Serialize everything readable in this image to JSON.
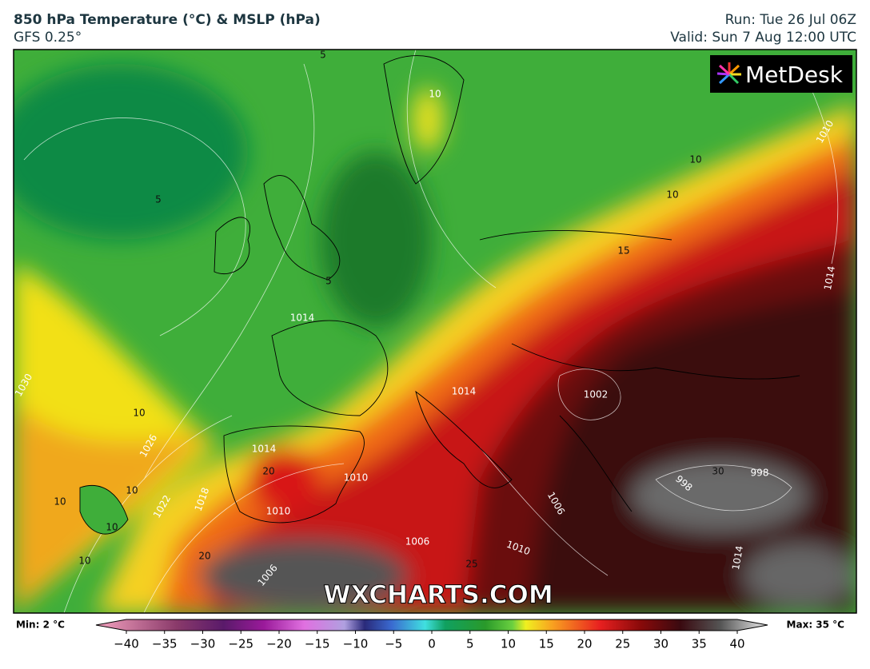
{
  "header": {
    "title": "850 hPa Temperature (°C) & MSLP (hPa)",
    "subtitle": "GFS 0.25°",
    "run": "Run: Tue 26 Jul 06Z",
    "valid": "Valid: Sun 7 Aug 12:00 UTC"
  },
  "logo": "MetDesk",
  "watermark": "WXCHARTS.COM",
  "map": {
    "labels": [
      "10",
      "5",
      "5",
      "10",
      "10",
      "15",
      "5",
      "1014",
      "1014",
      "1010",
      "10",
      "10",
      "10",
      "10",
      "10",
      "1030",
      "1026",
      "1022",
      "1018",
      "1014",
      "1014",
      "1010",
      "1010",
      "1002",
      "998",
      "998",
      "1006",
      "1010",
      "1006",
      "1006",
      "20",
      "25",
      "30",
      "20",
      "1014"
    ]
  },
  "colorbar": {
    "min_label": "Min: 2 °C",
    "max_label": "Max: 35 °C",
    "ticks": [
      {
        "value": -40,
        "label": "−40"
      },
      {
        "value": -35,
        "label": "−35"
      },
      {
        "value": -30,
        "label": "−30"
      },
      {
        "value": -25,
        "label": "−25"
      },
      {
        "value": -20,
        "label": "−20"
      },
      {
        "value": -15,
        "label": "−15"
      },
      {
        "value": -10,
        "label": "−10"
      },
      {
        "value": -5,
        "label": "−5"
      },
      0,
      5,
      10,
      15,
      20,
      25,
      30,
      35,
      40
    ],
    "lim": [
      -40,
      40
    ]
  }
}
